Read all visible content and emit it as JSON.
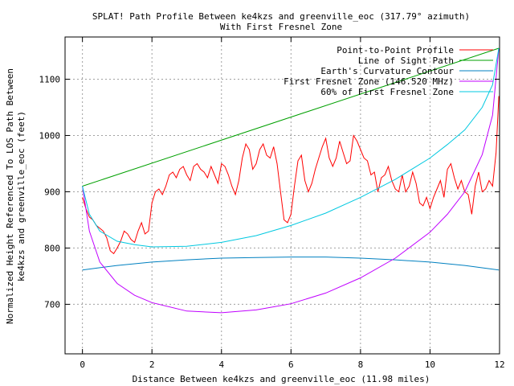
{
  "chart_data": {
    "type": "line",
    "title": "SPLAT! Path Profile Between ke4kzs and greenville_eoc (317.79° azimuth)",
    "subtitle": "With First Fresnel Zone",
    "xlabel": "Distance Between ke4kzs and greenville_eoc (11.98 miles)",
    "ylabel": [
      "Normalized Height Referenced To LOS Path Between",
      "ke4kzs and greenville_eoc (feet)"
    ],
    "xlim": [
      -0.5,
      12
    ],
    "ylim": [
      612,
      1175
    ],
    "xticks": [
      0,
      2,
      4,
      6,
      8,
      10,
      12
    ],
    "yticks": [
      700,
      800,
      900,
      1000,
      1100
    ],
    "grid": true,
    "legend_position": "top-right",
    "series": [
      {
        "name": "Point-to-Point Profile",
        "color": "#ff0000",
        "x": [
          0,
          0.1,
          0.2,
          0.3,
          0.4,
          0.5,
          0.6,
          0.7,
          0.8,
          0.9,
          1.0,
          1.1,
          1.2,
          1.3,
          1.4,
          1.5,
          1.6,
          1.7,
          1.8,
          1.9,
          2.0,
          2.1,
          2.2,
          2.3,
          2.4,
          2.5,
          2.6,
          2.7,
          2.8,
          2.9,
          3.0,
          3.1,
          3.2,
          3.3,
          3.4,
          3.5,
          3.6,
          3.7,
          3.8,
          3.9,
          4.0,
          4.1,
          4.2,
          4.3,
          4.4,
          4.5,
          4.6,
          4.7,
          4.8,
          4.9,
          5.0,
          5.1,
          5.2,
          5.3,
          5.4,
          5.5,
          5.6,
          5.7,
          5.8,
          5.9,
          6.0,
          6.1,
          6.2,
          6.3,
          6.4,
          6.5,
          6.6,
          6.7,
          6.8,
          6.9,
          7.0,
          7.1,
          7.2,
          7.3,
          7.4,
          7.5,
          7.6,
          7.7,
          7.8,
          7.9,
          8.0,
          8.1,
          8.2,
          8.3,
          8.4,
          8.5,
          8.6,
          8.7,
          8.8,
          8.9,
          9.0,
          9.1,
          9.2,
          9.3,
          9.4,
          9.5,
          9.6,
          9.7,
          9.8,
          9.9,
          10.0,
          10.1,
          10.2,
          10.3,
          10.4,
          10.5,
          10.6,
          10.7,
          10.8,
          10.9,
          11.0,
          11.1,
          11.2,
          11.3,
          11.4,
          11.5,
          11.6,
          11.7,
          11.8,
          11.9,
          11.98
        ],
        "y": [
          890,
          870,
          855,
          850,
          840,
          835,
          830,
          818,
          795,
          790,
          800,
          812,
          830,
          825,
          815,
          810,
          830,
          845,
          825,
          830,
          880,
          900,
          905,
          895,
          910,
          930,
          935,
          925,
          940,
          945,
          930,
          920,
          945,
          950,
          940,
          935,
          925,
          945,
          930,
          915,
          950,
          945,
          930,
          910,
          895,
          920,
          960,
          985,
          975,
          940,
          950,
          975,
          985,
          965,
          960,
          980,
          950,
          900,
          850,
          845,
          860,
          910,
          955,
          965,
          920,
          900,
          915,
          940,
          960,
          980,
          995,
          960,
          945,
          960,
          990,
          970,
          950,
          955,
          1000,
          990,
          975,
          960,
          955,
          930,
          935,
          900,
          925,
          930,
          945,
          920,
          905,
          900,
          930,
          900,
          910,
          935,
          915,
          880,
          875,
          890,
          870,
          890,
          905,
          920,
          890,
          940,
          950,
          925,
          905,
          920,
          900,
          895,
          860,
          910,
          935,
          900,
          905,
          920,
          910,
          970,
          1070
        ],
        "width": 1
      },
      {
        "name": "Line of Sight Path",
        "color": "#00a000",
        "x": [
          0,
          11.98
        ],
        "y": [
          910,
          1155
        ],
        "width": 1
      },
      {
        "name": "Earth's Curvature Contour",
        "color": "#0080c0",
        "x": [
          0,
          1,
          2,
          3,
          4,
          5,
          6,
          7,
          8,
          9,
          10,
          11,
          11.98
        ],
        "y": [
          761,
          769,
          775,
          779,
          782,
          783,
          784,
          784,
          782,
          779,
          775,
          769,
          761
        ],
        "width": 1
      },
      {
        "name": "First Fresnel Zone (146.520 MHz)",
        "color": "#c000ff",
        "x": [
          0,
          0.2,
          0.5,
          1,
          1.5,
          2,
          3,
          4,
          5,
          6,
          7,
          8,
          9,
          10,
          10.5,
          11,
          11.5,
          11.8,
          11.98
        ],
        "y": [
          910,
          830,
          775,
          737,
          716,
          703,
          688,
          685,
          690,
          701,
          720,
          747,
          782,
          828,
          860,
          900,
          966,
          1036,
          1155
        ],
        "width": 1
      },
      {
        "name": "60% of First Fresnel Zone",
        "color": "#00c8e0",
        "x": [
          0,
          0.2,
          0.5,
          1,
          1.5,
          2,
          3,
          4,
          5,
          6,
          7,
          8,
          9,
          10,
          10.5,
          11,
          11.5,
          11.8,
          11.98
        ],
        "y": [
          910,
          860,
          830,
          812,
          806,
          802,
          803,
          810,
          822,
          840,
          862,
          890,
          922,
          960,
          984,
          1010,
          1050,
          1090,
          1155
        ],
        "width": 1
      }
    ]
  }
}
